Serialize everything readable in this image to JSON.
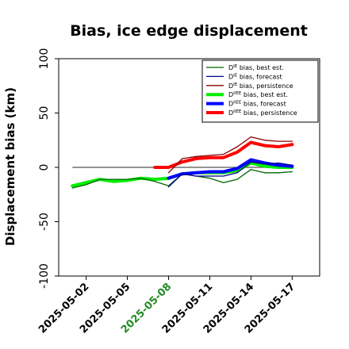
{
  "chart_data": {
    "type": "line",
    "title": "Bias, ice edge displacement",
    "xlabel": "",
    "ylabel": "Displacement bias (km)",
    "ylim": [
      -100,
      100
    ],
    "yticks": [
      -100,
      -50,
      0,
      50,
      100
    ],
    "xlim": [
      "2025-04-30",
      "2025-05-19"
    ],
    "xticks": [
      "2025-05-02",
      "2025-05-05",
      "2025-05-08",
      "2025-05-11",
      "2025-05-14",
      "2025-05-17"
    ],
    "xtick_colors": [
      "#000000",
      "#000000",
      "#228b22",
      "#000000",
      "#000000",
      "#000000"
    ],
    "grid": false,
    "legend_position": "top-right",
    "reference_line": {
      "y": 0,
      "from": "2025-05-01",
      "to": "2025-05-17",
      "color": "#555555"
    },
    "series": [
      {
        "label_main": "D",
        "label_sup": "IE",
        "label_rest": " bias, best est.",
        "color": "#006400",
        "width": 1.3,
        "x": [
          "2025-05-01",
          "2025-05-02",
          "2025-05-03",
          "2025-05-04",
          "2025-05-05",
          "2025-05-06",
          "2025-05-07",
          "2025-05-08",
          "2025-05-09",
          "2025-05-10",
          "2025-05-11",
          "2025-05-12",
          "2025-05-13",
          "2025-05-14",
          "2025-05-15",
          "2025-05-16",
          "2025-05-17"
        ],
        "y": [
          -19,
          -16,
          -11,
          -11,
          -11,
          -10,
          -13,
          -17,
          -6,
          -8,
          -10,
          -14,
          -11,
          -2,
          -5,
          -5,
          -4
        ]
      },
      {
        "label_main": "D",
        "label_sup": "IE",
        "label_rest": " bias, forecast",
        "color": "#00008b",
        "width": 1.3,
        "x": [
          "2025-05-08",
          "2025-05-09",
          "2025-05-10",
          "2025-05-11",
          "2025-05-12",
          "2025-05-13",
          "2025-05-14",
          "2025-05-15",
          "2025-05-16",
          "2025-05-17"
        ],
        "y": [
          -18,
          -6,
          -8,
          -8,
          -8,
          -5,
          5,
          3,
          4,
          2
        ]
      },
      {
        "label_main": "D",
        "label_sup": "IE",
        "label_rest": " bias, persistence",
        "color": "#8b0000",
        "width": 1.3,
        "x": [
          "2025-05-08",
          "2025-05-09",
          "2025-05-10",
          "2025-05-11",
          "2025-05-12",
          "2025-05-13",
          "2025-05-14",
          "2025-05-15",
          "2025-05-16",
          "2025-05-17"
        ],
        "y": [
          -5,
          8,
          10,
          11,
          12,
          19,
          28,
          25,
          24,
          24
        ]
      },
      {
        "label_main": "D",
        "label_sup": "IIEE",
        "label_rest": " bias, best est.",
        "color": "#00ee00",
        "width": 4,
        "x": [
          "2025-05-01",
          "2025-05-02",
          "2025-05-03",
          "2025-05-04",
          "2025-05-05",
          "2025-05-06",
          "2025-05-07",
          "2025-05-08",
          "2025-05-09",
          "2025-05-10",
          "2025-05-11",
          "2025-05-12",
          "2025-05-13",
          "2025-05-14",
          "2025-05-15",
          "2025-05-16",
          "2025-05-17"
        ],
        "y": [
          -17,
          -14,
          -11,
          -13,
          -12,
          -10,
          -11,
          -10,
          -6,
          -5,
          -5,
          -5,
          -3,
          4,
          1,
          0,
          0
        ]
      },
      {
        "label_main": "D",
        "label_sup": "IIEE",
        "label_rest": " bias, forecast",
        "color": "#0000ff",
        "width": 4,
        "x": [
          "2025-05-08",
          "2025-05-09",
          "2025-05-10",
          "2025-05-11",
          "2025-05-12",
          "2025-05-13",
          "2025-05-14",
          "2025-05-15",
          "2025-05-16",
          "2025-05-17"
        ],
        "y": [
          -10,
          -6,
          -5,
          -4,
          -4,
          -1,
          7,
          4,
          2,
          1
        ]
      },
      {
        "label_main": "D",
        "label_sup": "IIEE",
        "label_rest": " bias, persistence",
        "color": "#ff0000",
        "width": 4,
        "x": [
          "2025-05-07",
          "2025-05-08",
          "2025-05-09",
          "2025-05-10",
          "2025-05-11",
          "2025-05-12",
          "2025-05-13",
          "2025-05-14",
          "2025-05-15",
          "2025-05-16",
          "2025-05-17"
        ],
        "y": [
          0,
          0,
          5,
          8,
          9,
          9,
          14,
          23,
          20,
          19,
          21
        ]
      }
    ]
  }
}
